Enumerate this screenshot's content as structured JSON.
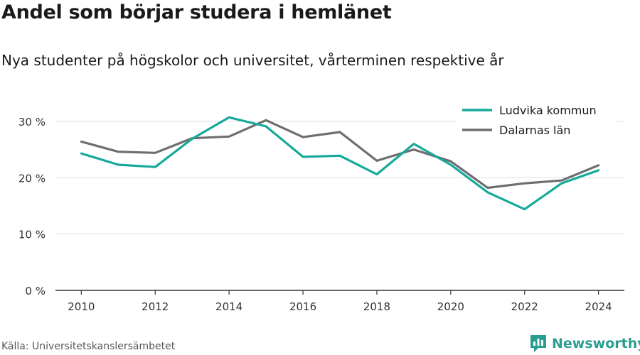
{
  "chart_data": {
    "type": "line",
    "title": "Andel som börjar studera i hemlänet",
    "subtitle": "Nya studenter på högskolor och universitet, vårterminen respektive år",
    "x": [
      2010,
      2011,
      2012,
      2013,
      2014,
      2015,
      2016,
      2017,
      2018,
      2019,
      2020,
      2021,
      2022,
      2023,
      2024
    ],
    "series": [
      {
        "name": "Ludvika kommun",
        "color": "#16a99c",
        "values": [
          24.3,
          22.3,
          21.9,
          26.9,
          30.7,
          29.1,
          23.7,
          23.9,
          20.6,
          26.0,
          22.3,
          17.4,
          14.4,
          19.0,
          21.3
        ]
      },
      {
        "name": "Dalarnas län",
        "color": "#6e6e6e",
        "values": [
          26.4,
          24.6,
          24.4,
          27.0,
          27.3,
          30.2,
          27.2,
          28.1,
          23.0,
          25.0,
          22.9,
          18.2,
          19.0,
          19.5,
          22.2
        ]
      }
    ],
    "y_ticks": [
      0,
      10,
      20,
      30
    ],
    "y_tick_labels": [
      "0 %",
      "10 %",
      "20 %",
      "30 %"
    ],
    "x_ticks": [
      2010,
      2012,
      2014,
      2016,
      2018,
      2020,
      2022,
      2024
    ],
    "ylim": [
      0,
      32
    ],
    "xlim": [
      2009.3,
      2024.7
    ],
    "grid": true,
    "legend_position": "top-right",
    "xlabel": "",
    "ylabel": ""
  },
  "source": "Källa: Universitetskanslersämbetet",
  "brand": {
    "name": "Newsworthy",
    "icon": "bar-chart-logo-icon",
    "color": "#2a9d8f"
  }
}
